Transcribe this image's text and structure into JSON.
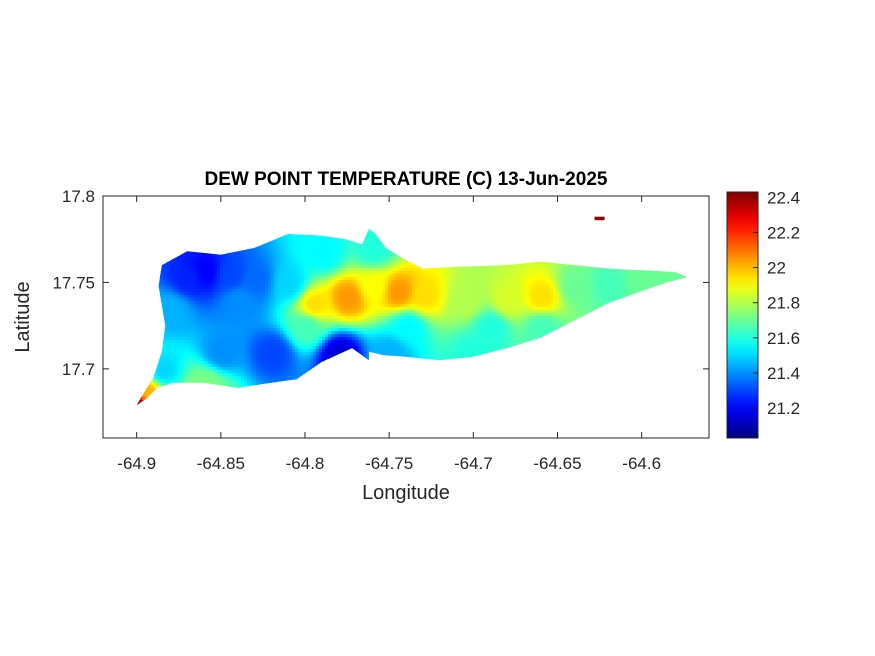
{
  "chart_data": {
    "type": "heatmap",
    "title": "DEW POINT TEMPERATURE (C) 13-Jun-2025",
    "xlabel": "Longitude",
    "ylabel": "Latitude",
    "xlim": [
      -64.92,
      -64.56
    ],
    "ylim": [
      17.66,
      17.8
    ],
    "x_ticks": [
      -64.9,
      -64.85,
      -64.8,
      -64.75,
      -64.7,
      -64.65,
      -64.6
    ],
    "x_tick_labels": [
      "-64.9",
      "-64.85",
      "-64.8",
      "-64.75",
      "-64.7",
      "-64.65",
      "-64.6"
    ],
    "y_ticks": [
      17.7,
      17.75,
      17.8
    ],
    "y_tick_labels": [
      "17.7",
      "17.75",
      "17.8"
    ],
    "colormap": "jet",
    "color_range": [
      21.03,
      22.43
    ],
    "colorbar_ticks": [
      21.2,
      21.4,
      21.6,
      21.8,
      22,
      22.2,
      22.4
    ],
    "colorbar_tick_labels": [
      "21.2",
      "21.4",
      "21.6",
      "21.8",
      "22",
      "22.2",
      "22.4"
    ],
    "background_value": 21.6,
    "grid": false,
    "field": [
      {
        "lon": -64.86,
        "lat": 17.757,
        "value": 21.2
      },
      {
        "lon": -64.87,
        "lat": 17.753,
        "value": 21.25
      },
      {
        "lon": -64.845,
        "lat": 17.755,
        "value": 21.3
      },
      {
        "lon": -64.83,
        "lat": 17.752,
        "value": 21.35
      },
      {
        "lon": -64.88,
        "lat": 17.735,
        "value": 21.45
      },
      {
        "lon": -64.84,
        "lat": 17.74,
        "value": 21.4
      },
      {
        "lon": -64.81,
        "lat": 17.75,
        "value": 21.5
      },
      {
        "lon": -64.85,
        "lat": 17.71,
        "value": 21.4
      },
      {
        "lon": -64.78,
        "lat": 17.709,
        "value": 21.15
      },
      {
        "lon": -64.82,
        "lat": 17.71,
        "value": 21.3
      },
      {
        "lon": -64.885,
        "lat": 17.7,
        "value": 21.5
      },
      {
        "lon": -64.86,
        "lat": 17.69,
        "value": 21.6
      },
      {
        "lon": -64.775,
        "lat": 17.742,
        "value": 22.05
      },
      {
        "lon": -64.795,
        "lat": 17.738,
        "value": 21.95
      },
      {
        "lon": -64.745,
        "lat": 17.745,
        "value": 22.05
      },
      {
        "lon": -64.73,
        "lat": 17.743,
        "value": 21.95
      },
      {
        "lon": -64.76,
        "lat": 17.748,
        "value": 21.9
      },
      {
        "lon": -64.76,
        "lat": 17.77,
        "value": 21.6
      },
      {
        "lon": -64.74,
        "lat": 17.725,
        "value": 21.55
      },
      {
        "lon": -64.75,
        "lat": 17.71,
        "value": 21.45
      },
      {
        "lon": -64.79,
        "lat": 17.768,
        "value": 21.55
      },
      {
        "lon": -64.8,
        "lat": 17.725,
        "value": 21.65
      },
      {
        "lon": -64.705,
        "lat": 17.74,
        "value": 21.8
      },
      {
        "lon": -64.68,
        "lat": 17.74,
        "value": 21.85
      },
      {
        "lon": -64.66,
        "lat": 17.742,
        "value": 21.95
      },
      {
        "lon": -64.69,
        "lat": 17.725,
        "value": 21.6
      },
      {
        "lon": -64.64,
        "lat": 17.748,
        "value": 21.7
      },
      {
        "lon": -64.62,
        "lat": 17.75,
        "value": 21.65
      },
      {
        "lon": -64.6,
        "lat": 17.752,
        "value": 21.7
      },
      {
        "lon": -64.66,
        "lat": 17.725,
        "value": 21.65
      },
      {
        "lon": -64.7,
        "lat": 17.71,
        "value": 21.6
      },
      {
        "lon": -64.9,
        "lat": 17.68,
        "value": 22.45
      },
      {
        "lon": -64.895,
        "lat": 17.686,
        "value": 22.0
      },
      {
        "lon": -64.86,
        "lat": 17.69,
        "value": 21.85
      },
      {
        "lon": -64.625,
        "lat": 17.787,
        "value": 22.4
      }
    ],
    "island_outline": [
      [
        -64.9,
        17.679
      ],
      [
        -64.894,
        17.683
      ],
      [
        -64.888,
        17.689
      ],
      [
        -64.878,
        17.692
      ],
      [
        -64.86,
        17.692
      ],
      [
        -64.84,
        17.689
      ],
      [
        -64.82,
        17.692
      ],
      [
        -64.805,
        17.694
      ],
      [
        -64.79,
        17.704
      ],
      [
        -64.772,
        17.712
      ],
      [
        -64.762,
        17.705
      ],
      [
        -64.762,
        17.71
      ],
      [
        -64.754,
        17.708
      ],
      [
        -64.74,
        17.707
      ],
      [
        -64.72,
        17.705
      ],
      [
        -64.7,
        17.707
      ],
      [
        -64.68,
        17.712
      ],
      [
        -64.66,
        17.718
      ],
      [
        -64.64,
        17.728
      ],
      [
        -64.62,
        17.738
      ],
      [
        -64.6,
        17.745
      ],
      [
        -64.585,
        17.75
      ],
      [
        -64.573,
        17.753
      ],
      [
        -64.58,
        17.756
      ],
      [
        -64.6,
        17.757
      ],
      [
        -64.62,
        17.758
      ],
      [
        -64.64,
        17.76
      ],
      [
        -64.66,
        17.762
      ],
      [
        -64.68,
        17.76
      ],
      [
        -64.71,
        17.759
      ],
      [
        -64.73,
        17.758
      ],
      [
        -64.742,
        17.764
      ],
      [
        -64.752,
        17.77
      ],
      [
        -64.758,
        17.778
      ],
      [
        -64.762,
        17.781
      ],
      [
        -64.766,
        17.772
      ],
      [
        -64.776,
        17.775
      ],
      [
        -64.79,
        17.777
      ],
      [
        -64.81,
        17.778
      ],
      [
        -64.83,
        17.77
      ],
      [
        -64.85,
        17.766
      ],
      [
        -64.87,
        17.768
      ],
      [
        -64.885,
        17.76
      ],
      [
        -64.887,
        17.748
      ],
      [
        -64.883,
        17.725
      ],
      [
        -64.885,
        17.71
      ],
      [
        -64.89,
        17.695
      ],
      [
        -64.897,
        17.684
      ]
    ],
    "islet_outline": [
      [
        -64.628,
        17.788
      ],
      [
        -64.622,
        17.788
      ],
      [
        -64.622,
        17.786
      ],
      [
        -64.628,
        17.786
      ]
    ]
  }
}
